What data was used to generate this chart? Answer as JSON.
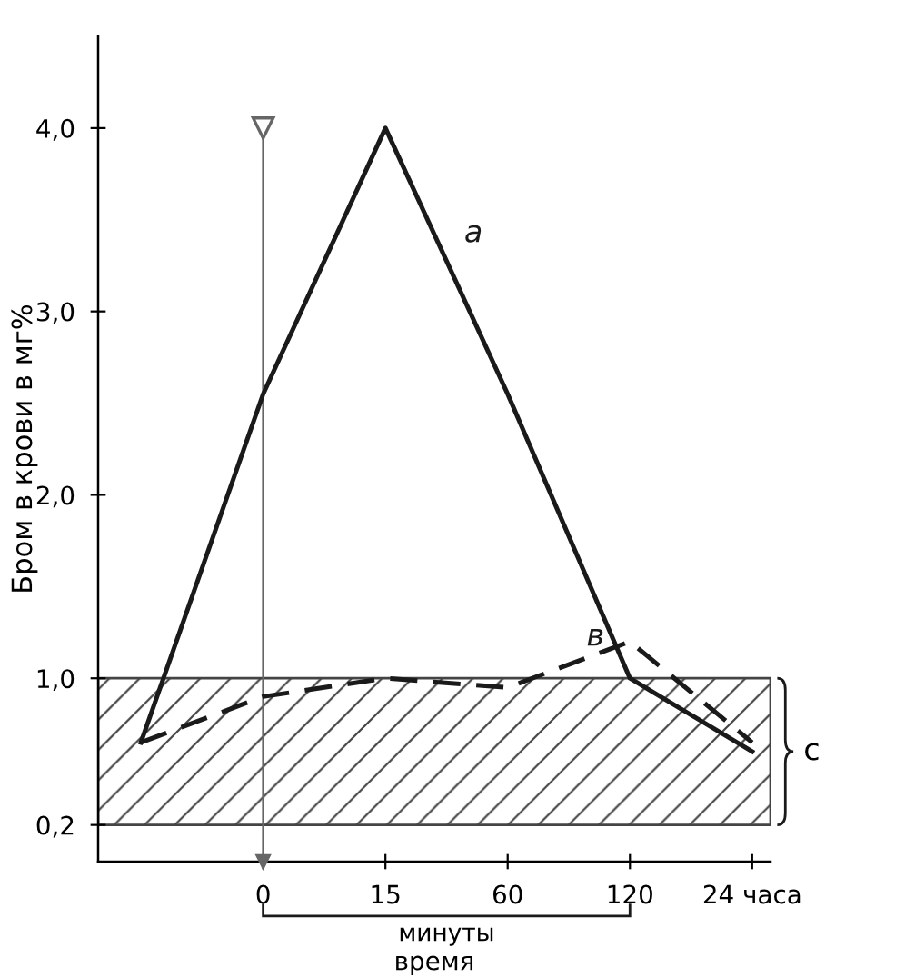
{
  "chart_data": {
    "type": "line",
    "xlabel": "время",
    "ylabel": "Бром в крови в мг%",
    "categories": [
      null,
      "0",
      "15",
      "60",
      "120",
      "24 часа"
    ],
    "series": [
      {
        "name": "а",
        "color": "#1a1a1a",
        "line_style": "solid",
        "values": [
          0.65,
          2.55,
          4.0,
          2.55,
          1.0,
          0.6
        ]
      },
      {
        "name": "в",
        "color": "#1a1a1a",
        "line_style": "dashed",
        "values": [
          0.65,
          0.9,
          1.0,
          0.95,
          1.2,
          0.65
        ]
      }
    ],
    "ylim": [
      0,
      4.5
    ],
    "yticks": [
      {
        "value": 0.2,
        "label": "0,2"
      },
      {
        "value": 1,
        "label": "1,0"
      },
      {
        "value": 2,
        "label": "2,0"
      },
      {
        "value": 3,
        "label": "3,0"
      },
      {
        "value": 4,
        "label": "4,0"
      }
    ],
    "bands": [
      {
        "axis": "y",
        "from": 0.2,
        "to": 1.0,
        "label": "с",
        "color": "#444444"
      }
    ],
    "ref_lines": [
      {
        "axis": "x",
        "value": "0",
        "color": "#666666"
      }
    ],
    "annotations": [
      "минуты"
    ]
  }
}
